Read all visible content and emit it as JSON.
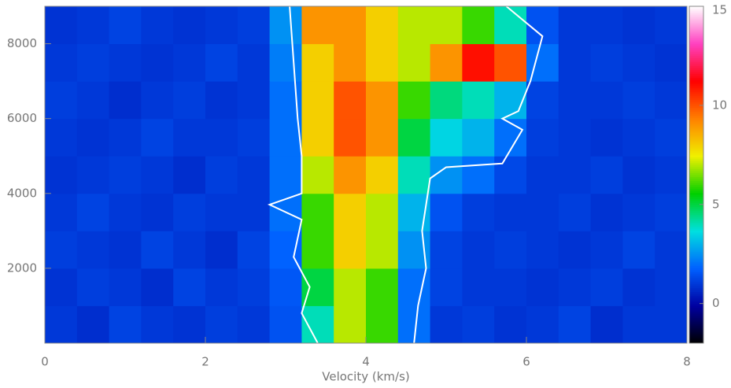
{
  "chart_data": {
    "type": "heatmap",
    "xlabel": "Velocity (km/s)",
    "xbins": [
      0,
      0.4,
      0.8,
      1.2,
      1.6,
      2.0,
      2.4,
      2.8,
      3.2,
      3.6,
      4.0,
      4.4,
      4.8,
      5.2,
      5.6,
      6.0,
      6.4,
      6.8,
      7.2,
      7.6,
      8.0
    ],
    "ybins": [
      0,
      1000,
      2000,
      3000,
      4000,
      5000,
      6000,
      7000,
      8000,
      9000
    ],
    "z": [
      [
        1,
        0.8,
        1.2,
        1,
        0.9,
        1.1,
        1,
        1.5,
        4,
        7,
        6,
        2,
        1,
        1.1,
        0.9,
        1,
        1.2,
        0.8,
        1,
        1
      ],
      [
        0.9,
        1.1,
        1,
        0.8,
        1.2,
        1,
        1.1,
        1.6,
        5,
        7,
        6,
        2,
        1.2,
        1,
        1,
        0.9,
        1,
        1.1,
        0.9,
        1
      ],
      [
        1.1,
        1,
        0.9,
        1.2,
        1,
        0.8,
        1.2,
        1.8,
        6,
        8,
        7,
        2.5,
        1.2,
        1,
        1.1,
        1,
        0.9,
        1,
        1.2,
        1
      ],
      [
        1,
        1.2,
        1,
        0.9,
        1.1,
        1,
        1,
        2,
        6,
        8,
        7,
        3,
        1.5,
        1.1,
        1,
        1,
        1.1,
        0.9,
        1,
        1.1
      ],
      [
        0.9,
        1,
        1.1,
        1,
        0.8,
        1.1,
        1,
        2,
        7,
        9,
        8,
        4,
        2.5,
        2,
        1.3,
        1,
        1,
        1.1,
        0.9,
        1
      ],
      [
        1,
        0.9,
        1,
        1.2,
        1,
        1,
        1.1,
        2,
        8,
        10,
        9,
        5,
        3.5,
        3,
        2,
        1.1,
        1,
        0.9,
        1,
        1.1
      ],
      [
        1.1,
        1,
        0.8,
        1,
        1.1,
        0.9,
        1,
        2,
        8,
        10,
        9,
        6,
        4.5,
        4,
        3,
        1.2,
        1,
        1,
        1.1,
        1
      ],
      [
        1,
        1.1,
        1,
        0.9,
        1,
        1.2,
        1,
        2.2,
        8,
        9,
        8,
        7,
        9,
        11,
        10,
        2,
        1,
        1.1,
        1,
        0.9
      ],
      [
        0.9,
        1,
        1.2,
        1,
        0.9,
        1,
        1.1,
        2.5,
        9,
        9,
        8,
        7,
        7,
        6,
        4,
        1.5,
        1,
        1,
        0.9,
        1
      ]
    ],
    "xlim": [
      0,
      8
    ],
    "xticks": [
      0,
      2,
      4,
      6,
      8
    ],
    "ylim": [
      0,
      9000
    ],
    "yticks": [
      2000,
      4000,
      6000,
      8000
    ],
    "zlim": [
      -2,
      15
    ],
    "zticks": [
      0,
      5,
      10,
      15
    ],
    "colormap": [
      "#000000",
      "#0000a0",
      "#0060ff",
      "#00e0e0",
      "#00d000",
      "#f0f000",
      "#ff8000",
      "#ff0000",
      "#ff40c0",
      "#ffffff"
    ],
    "contours": [
      {
        "color": "#ffffff",
        "x": [
          3.05,
          3.1,
          3.15,
          3.2,
          3.2,
          2.8,
          3.2,
          3.1,
          3.3,
          3.2,
          3.4
        ],
        "y": [
          9000,
          7500,
          6000,
          5000,
          4000,
          3700,
          3300,
          2300,
          1500,
          800,
          0
        ]
      },
      {
        "color": "#ffffff",
        "x": [
          5.75,
          6.2,
          6.05,
          5.9,
          5.7,
          5.95,
          5.7,
          5.0,
          4.8,
          4.7,
          4.75,
          4.65,
          4.6
        ],
        "y": [
          9000,
          8200,
          7000,
          6200,
          6000,
          5700,
          4800,
          4700,
          4400,
          3000,
          2000,
          1000,
          0
        ]
      }
    ]
  }
}
